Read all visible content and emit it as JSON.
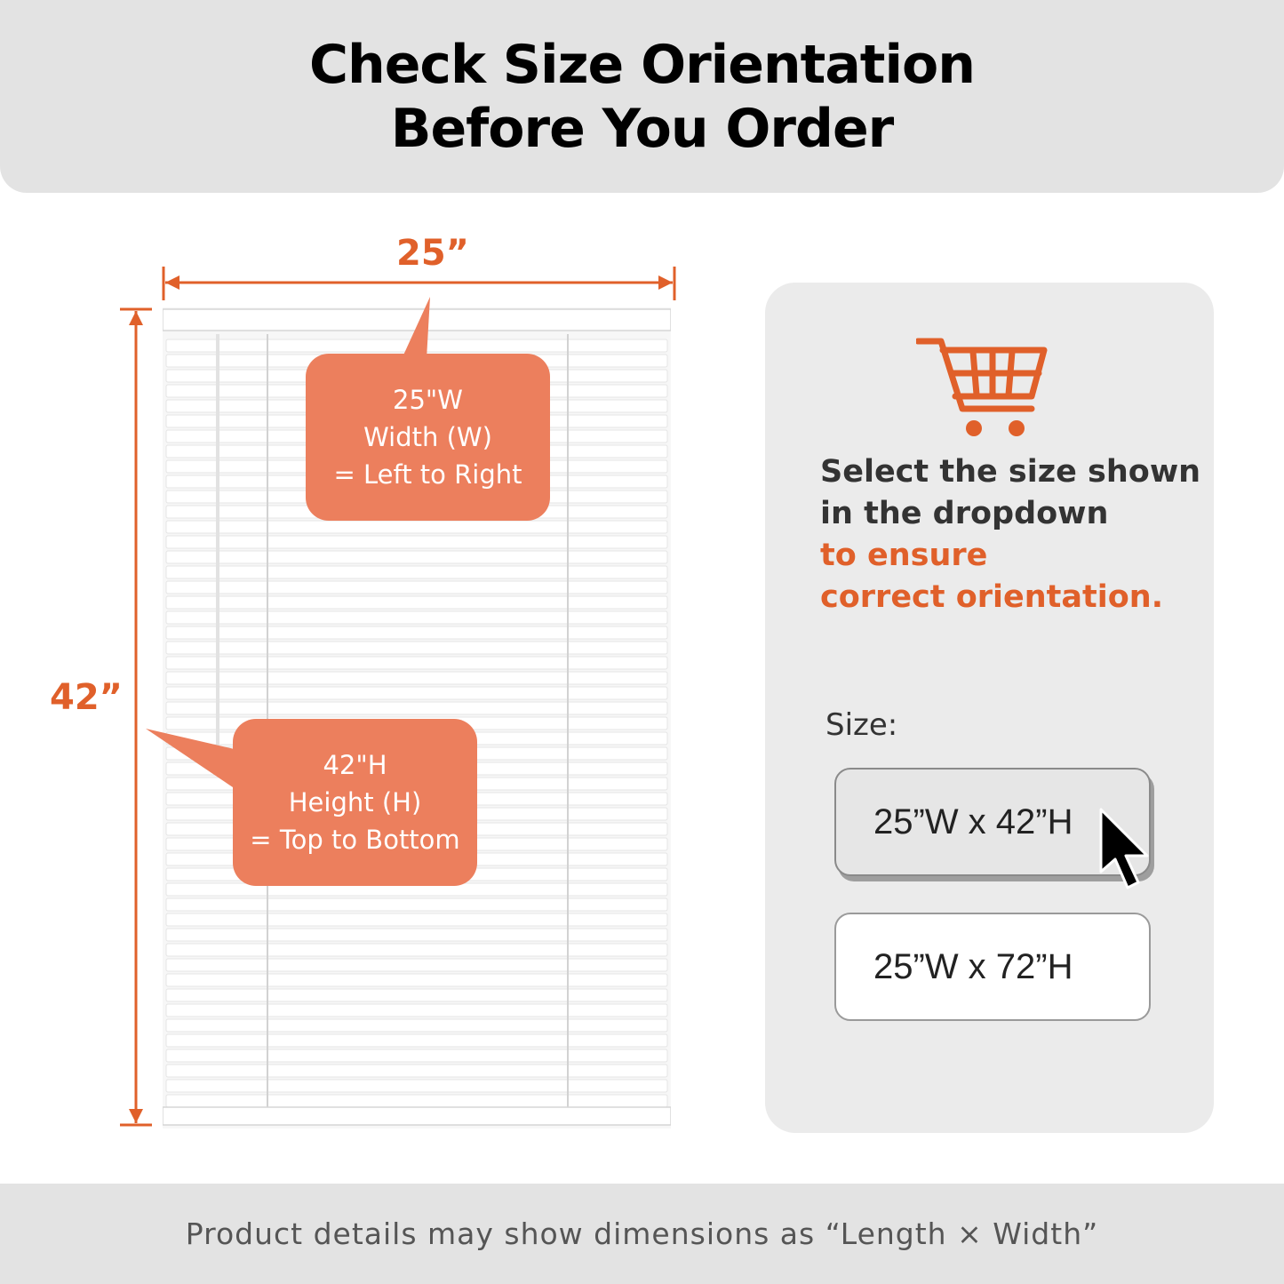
{
  "header": {
    "title_line1": "Check Size Orientation",
    "title_line2": "Before You Order"
  },
  "dimensions": {
    "width_label": "25”",
    "height_label": "42”"
  },
  "bubbles": {
    "width": {
      "line1": "25\"W",
      "line2": "Width (W)",
      "line3": "= Left to Right"
    },
    "height": {
      "line1": "42\"H",
      "line2": "Height (H)",
      "line3": "= Top to Bottom"
    }
  },
  "panel": {
    "cart_icon": "shopping-cart-icon",
    "instruction_line1": "Select the size shown",
    "instruction_line2": "in the dropdown",
    "instruction_accent1": "to ensure",
    "instruction_accent2": "correct orientation.",
    "size_label": "Size:",
    "options": [
      "25”W x 42”H",
      "25”W x 72”H"
    ],
    "selected_option": "25”W x 42”H",
    "pointer_icon": "mouse-pointer-icon"
  },
  "footer": {
    "note": "Product details may show dimensions as “Length × Width”"
  },
  "colors": {
    "accent": "#e0602a",
    "bubble": "#ec7f5d",
    "header_bg": "#e3e3e3",
    "panel_bg": "#ebebeb"
  }
}
